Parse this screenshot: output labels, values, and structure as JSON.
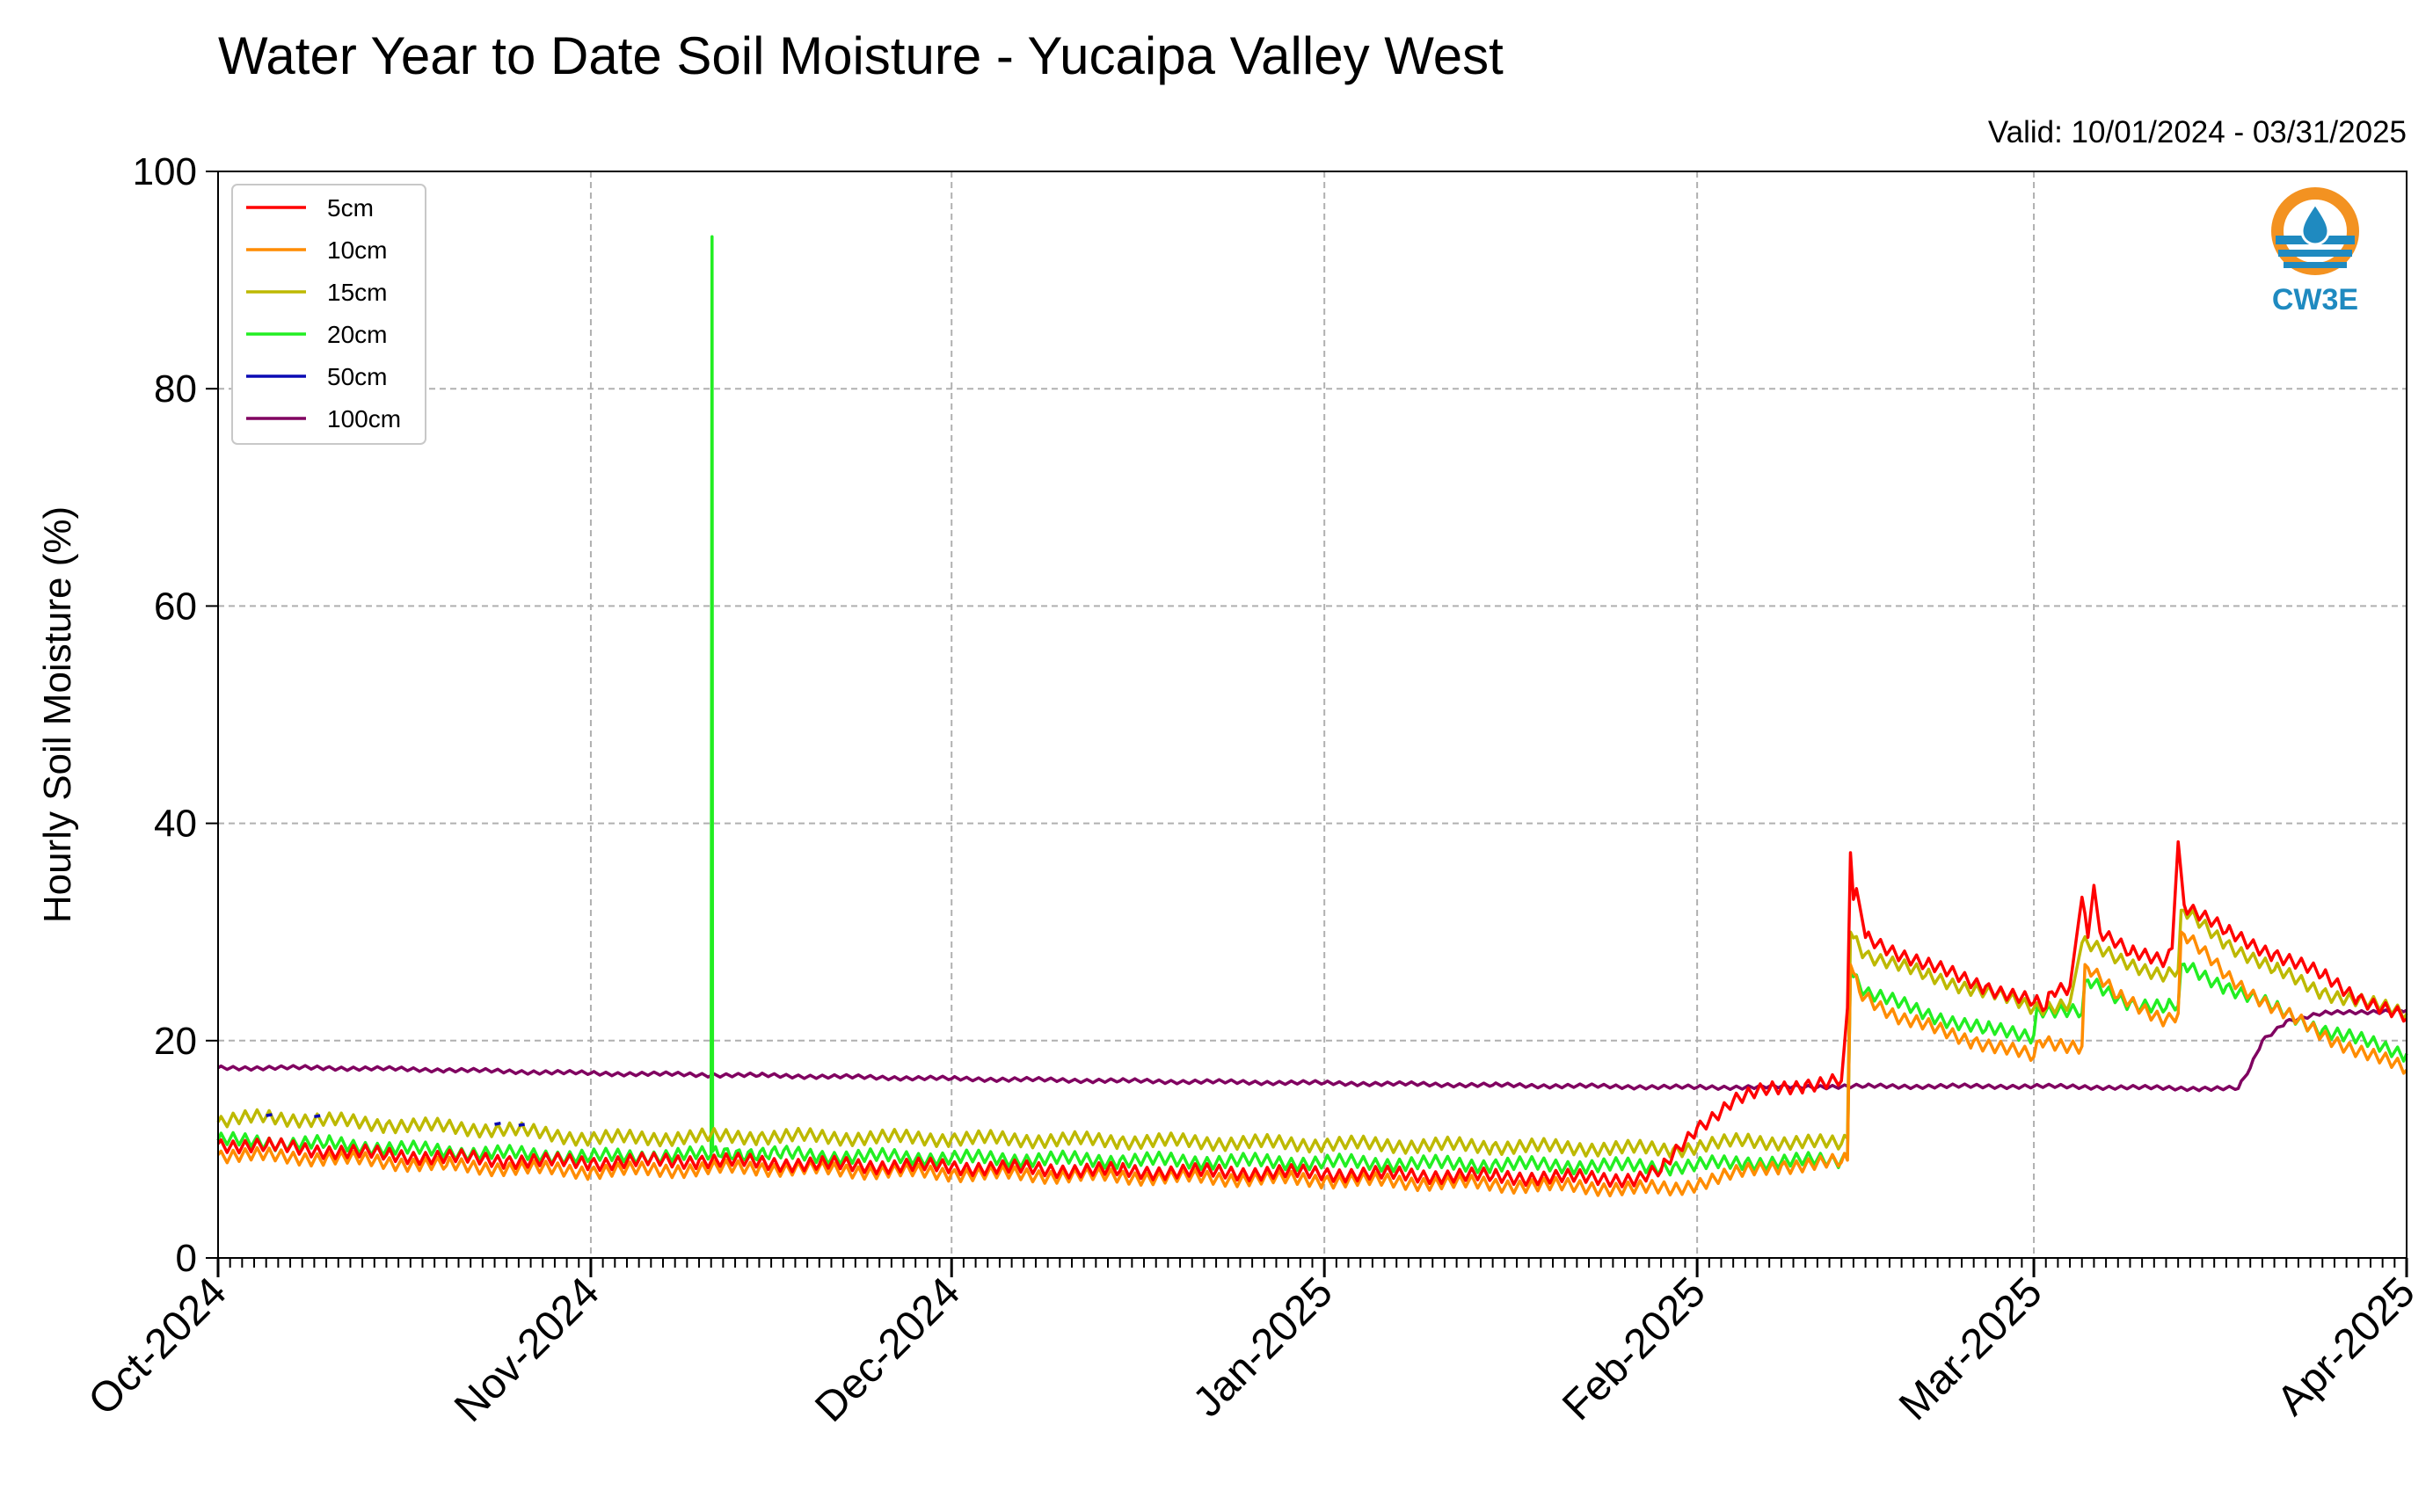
{
  "chart_data": {
    "type": "line",
    "title": "Water Year to Date Soil Moisture - Yucaipa Valley West",
    "subtitle": "Valid: 10/01/2024 - 03/31/2025",
    "ylabel": "Hourly Soil Moisture (%)",
    "xlabel": "",
    "ylim": [
      0,
      100
    ],
    "xlim": [
      "2024-10-01",
      "2025-04-01"
    ],
    "yticks": [
      "0",
      "20",
      "40",
      "60",
      "80",
      "100"
    ],
    "xticks": [
      {
        "date": "2024-10-01",
        "label": "Oct-2024"
      },
      {
        "date": "2024-11-01",
        "label": "Nov-2024"
      },
      {
        "date": "2024-12-01",
        "label": "Dec-2024"
      },
      {
        "date": "2025-01-01",
        "label": "Jan-2025"
      },
      {
        "date": "2025-02-01",
        "label": "Feb-2025"
      },
      {
        "date": "2025-03-01",
        "label": "Mar-2025"
      },
      {
        "date": "2025-04-01",
        "label": "Apr-2025"
      }
    ],
    "grid": true,
    "legend_position": "top-left",
    "series": [
      {
        "name": "5cm",
        "color": "#ff0000",
        "points": [
          [
            "2024-10-01",
            10.5
          ],
          [
            "2024-10-05",
            10.3
          ],
          [
            "2024-10-15",
            9.5
          ],
          [
            "2024-10-25",
            9.0
          ],
          [
            "2024-11-01",
            8.8
          ],
          [
            "2024-11-10",
            9.0
          ],
          [
            "2024-11-20",
            8.6
          ],
          [
            "2024-12-01",
            8.4
          ],
          [
            "2024-12-15",
            8.0
          ],
          [
            "2025-01-01",
            7.8
          ],
          [
            "2025-01-15",
            7.5
          ],
          [
            "2025-01-27",
            7.3
          ],
          [
            "2025-01-29",
            8.0
          ],
          [
            "2025-02-01",
            12.0
          ],
          [
            "2025-02-04",
            14.5
          ],
          [
            "2025-02-07",
            15.5
          ],
          [
            "2025-02-10",
            16.0
          ],
          [
            "2025-02-13",
            16.3
          ],
          [
            "2025-02-13 12:00",
            23.0
          ],
          [
            "2025-02-13 18:00",
            37.3
          ],
          [
            "2025-02-14",
            33.0
          ],
          [
            "2025-02-14 06:00",
            34.0
          ],
          [
            "2025-02-15",
            29.5
          ],
          [
            "2025-02-20",
            27.0
          ],
          [
            "2025-02-25",
            25.0
          ],
          [
            "2025-03-01",
            23.5
          ],
          [
            "2025-03-02",
            23.0
          ],
          [
            "2025-03-02 12:00",
            24.5
          ],
          [
            "2025-03-04",
            25.0
          ],
          [
            "2025-03-05",
            33.2
          ],
          [
            "2025-03-05 12:00",
            29.5
          ],
          [
            "2025-03-06",
            34.3
          ],
          [
            "2025-03-06 12:00",
            30.0
          ],
          [
            "2025-03-09",
            28.0
          ],
          [
            "2025-03-12",
            27.5
          ],
          [
            "2025-03-12 12:00",
            28.5
          ],
          [
            "2025-03-13",
            38.3
          ],
          [
            "2025-03-13 12:00",
            32.5
          ],
          [
            "2025-03-17",
            30.0
          ],
          [
            "2025-03-21",
            28.0
          ],
          [
            "2025-03-25",
            26.0
          ],
          [
            "2025-03-28",
            24.0
          ],
          [
            "2025-04-01",
            22.0
          ]
        ]
      },
      {
        "name": "10cm",
        "color": "#ff8c00",
        "points": [
          [
            "2024-10-01",
            9.5
          ],
          [
            "2024-10-10",
            9.2
          ],
          [
            "2024-10-20",
            8.5
          ],
          [
            "2024-11-01",
            8.0
          ],
          [
            "2024-11-15",
            8.3
          ],
          [
            "2024-12-01",
            7.8
          ],
          [
            "2024-12-15",
            7.5
          ],
          [
            "2025-01-01",
            7.2
          ],
          [
            "2025-01-15",
            6.8
          ],
          [
            "2025-01-30",
            6.3
          ],
          [
            "2025-02-03",
            7.5
          ],
          [
            "2025-02-08",
            8.5
          ],
          [
            "2025-02-13",
            8.8
          ],
          [
            "2025-02-13 12:00",
            9.0
          ],
          [
            "2025-02-13 18:00",
            27.0
          ],
          [
            "2025-02-14 12:00",
            24.5
          ],
          [
            "2025-02-18",
            22.0
          ],
          [
            "2025-02-24",
            20.0
          ],
          [
            "2025-03-01",
            18.5
          ],
          [
            "2025-03-01 12:00",
            20.0
          ],
          [
            "2025-03-05",
            19.5
          ],
          [
            "2025-03-05 06:00",
            27.0
          ],
          [
            "2025-03-08",
            24.0
          ],
          [
            "2025-03-12",
            22.0
          ],
          [
            "2025-03-13",
            22.5
          ],
          [
            "2025-03-13 06:00",
            30.0
          ],
          [
            "2025-03-17",
            26.0
          ],
          [
            "2025-03-21",
            23.0
          ],
          [
            "2025-03-25",
            20.5
          ],
          [
            "2025-04-01",
            17.3
          ]
        ]
      },
      {
        "name": "15cm",
        "color": "#bdb900",
        "points": [
          [
            "2024-10-01",
            12.5
          ],
          [
            "2024-10-05",
            13.0
          ],
          [
            "2024-10-15",
            12.3
          ],
          [
            "2024-10-25",
            11.8
          ],
          [
            "2024-11-01",
            11.0
          ],
          [
            "2024-11-15",
            11.2
          ],
          [
            "2024-12-01",
            11.0
          ],
          [
            "2024-12-15",
            10.8
          ],
          [
            "2025-01-01",
            10.5
          ],
          [
            "2025-01-15",
            10.3
          ],
          [
            "2025-01-30",
            10.0
          ],
          [
            "2025-02-05",
            10.8
          ],
          [
            "2025-02-13",
            10.5
          ],
          [
            "2025-02-13 12:00",
            11.0
          ],
          [
            "2025-02-13 18:00",
            30.0
          ],
          [
            "2025-02-15",
            28.0
          ],
          [
            "2025-02-20",
            26.0
          ],
          [
            "2025-02-25",
            24.5
          ],
          [
            "2025-03-01",
            23.0
          ],
          [
            "2025-03-04",
            23.5
          ],
          [
            "2025-03-05",
            29.0
          ],
          [
            "2025-03-08",
            27.5
          ],
          [
            "2025-03-12",
            26.0
          ],
          [
            "2025-03-13",
            26.5
          ],
          [
            "2025-03-13 06:00",
            32.0
          ],
          [
            "2025-03-17",
            29.0
          ],
          [
            "2025-03-21",
            26.5
          ],
          [
            "2025-03-25",
            24.5
          ],
          [
            "2025-04-01",
            22.5
          ]
        ]
      },
      {
        "name": "20cm",
        "color": "#22ee22",
        "points": [
          [
            "2024-10-01",
            10.8
          ],
          [
            "2024-10-10",
            10.5
          ],
          [
            "2024-10-20",
            9.8
          ],
          [
            "2024-11-01",
            9.3
          ],
          [
            "2024-11-11",
            9.5
          ],
          [
            "2024-11-11 02:00",
            94.0
          ],
          [
            "2024-11-11 03:00",
            9.8
          ],
          [
            "2024-11-20",
            9.4
          ],
          [
            "2024-12-01",
            9.2
          ],
          [
            "2024-12-15",
            9.0
          ],
          [
            "2025-01-01",
            8.8
          ],
          [
            "2025-01-15",
            8.6
          ],
          [
            "2025-01-30",
            8.4
          ],
          [
            "2025-02-05",
            8.8
          ],
          [
            "2025-02-13",
            9.0
          ],
          [
            "2025-02-13 12:00",
            9.5
          ],
          [
            "2025-02-13 18:00",
            26.5
          ],
          [
            "2025-02-15",
            24.5
          ],
          [
            "2025-02-20",
            22.5
          ],
          [
            "2025-02-25",
            21.0
          ],
          [
            "2025-03-01",
            20.5
          ],
          [
            "2025-03-01 06:00",
            23.0
          ],
          [
            "2025-03-05",
            22.5
          ],
          [
            "2025-03-05 06:00",
            25.5
          ],
          [
            "2025-03-09",
            23.5
          ],
          [
            "2025-03-12",
            23.0
          ],
          [
            "2025-03-13",
            23.2
          ],
          [
            "2025-03-13 06:00",
            27.0
          ],
          [
            "2025-03-17",
            25.0
          ],
          [
            "2025-03-21",
            23.0
          ],
          [
            "2025-03-25",
            21.0
          ],
          [
            "2025-04-01",
            18.8
          ]
        ]
      },
      {
        "name": "50cm",
        "color": "#0a0ab4",
        "points": [
          [
            "2024-10-05",
            13.1
          ],
          [
            "2024-10-05 12:00",
            13.2
          ],
          [
            "2024-10-09",
            13.0
          ],
          [
            "2024-10-09 12:00",
            13.1
          ],
          [
            "2024-10-24",
            12.3
          ],
          [
            "2024-10-24 12:00",
            12.4
          ],
          [
            "2024-10-26",
            12.2
          ],
          [
            "2024-10-26 12:00",
            12.3
          ]
        ]
      },
      {
        "name": "100cm",
        "color": "#800060",
        "points": [
          [
            "2024-10-01",
            17.5
          ],
          [
            "2024-10-10",
            17.5
          ],
          [
            "2024-10-20",
            17.3
          ],
          [
            "2024-11-01",
            17.0
          ],
          [
            "2024-11-15",
            16.8
          ],
          [
            "2024-12-01",
            16.5
          ],
          [
            "2024-12-15",
            16.3
          ],
          [
            "2025-01-01",
            16.1
          ],
          [
            "2025-01-15",
            15.9
          ],
          [
            "2025-02-01",
            15.7
          ],
          [
            "2025-02-15",
            15.8
          ],
          [
            "2025-03-01",
            15.8
          ],
          [
            "2025-03-15",
            15.6
          ],
          [
            "2025-03-18",
            15.6
          ],
          [
            "2025-03-19",
            17.5
          ],
          [
            "2025-03-20",
            20.0
          ],
          [
            "2025-03-22",
            21.8
          ],
          [
            "2025-03-25",
            22.5
          ],
          [
            "2025-04-01",
            22.8
          ]
        ]
      }
    ]
  },
  "logo": {
    "text": "CW3E",
    "color_orange": "#f39221",
    "color_blue": "#1f8ac0"
  }
}
